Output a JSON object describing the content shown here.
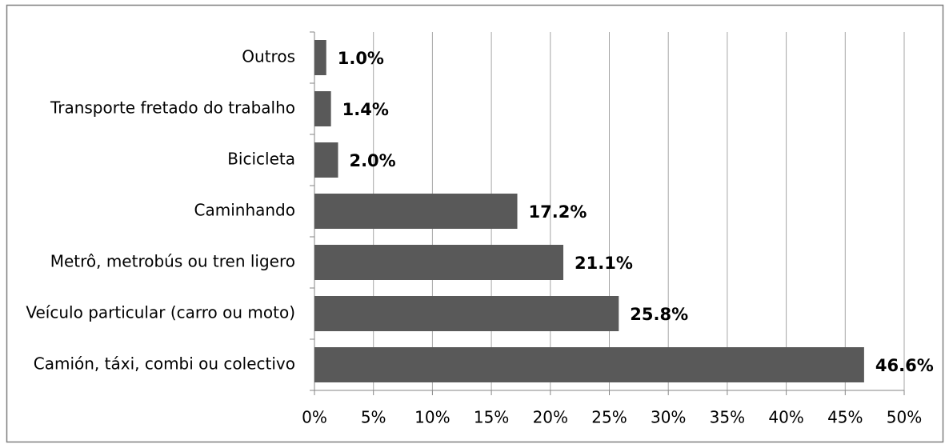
{
  "chart_data": {
    "type": "bar",
    "orientation": "horizontal",
    "categories": [
      "Outros",
      "Transporte fretado do trabalho",
      "Bicicleta",
      "Caminhando",
      "Metrô, metrobús ou tren ligero",
      "Veículo particular (carro ou moto)",
      "Camión, táxi, combi ou colectivo"
    ],
    "values": [
      1.0,
      1.4,
      2.0,
      17.2,
      21.1,
      25.8,
      46.6
    ],
    "value_labels": [
      "1.0%",
      "1.4%",
      "2.0%",
      "17.2%",
      "21.1%",
      "25.8%",
      "46.6%"
    ],
    "color": "#595959",
    "xlim": [
      0,
      50
    ],
    "xticks": [
      {
        "value": 0,
        "label": "0%"
      },
      {
        "value": 5,
        "label": "5%"
      },
      {
        "value": 10,
        "label": "10%"
      },
      {
        "value": 15,
        "label": "15%"
      },
      {
        "value": 20,
        "label": "20%"
      },
      {
        "value": 25,
        "label": "25%"
      },
      {
        "value": 30,
        "label": "30%"
      },
      {
        "value": 35,
        "label": "35%"
      },
      {
        "value": 40,
        "label": "40%"
      },
      {
        "value": 45,
        "label": "45%"
      },
      {
        "value": 50,
        "label": "50%"
      }
    ],
    "grid": true
  }
}
